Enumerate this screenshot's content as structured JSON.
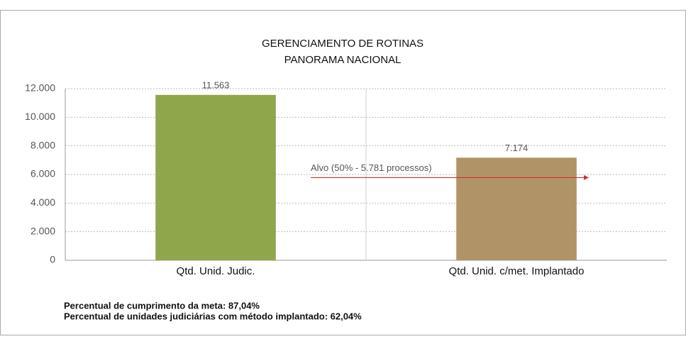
{
  "chart_data": {
    "type": "bar",
    "title": "GERENCIAMENTO DE ROTINAS",
    "subtitle": "PANORAMA NACIONAL",
    "categories": [
      "Qtd. Unid. Judic.",
      "Qtd. Unid. c/met. Implantado"
    ],
    "values": [
      11563,
      7174
    ],
    "value_labels": [
      "11.563",
      "7.174"
    ],
    "colors": [
      "#8fa64a",
      "#b09468"
    ],
    "ylim": [
      0,
      12000
    ],
    "yticks": [
      0,
      {
        "value": 2000,
        "label": "2.000"
      },
      {
        "value": 4000,
        "label": "4.000"
      },
      {
        "value": 6000,
        "label": "6.000"
      },
      {
        "value": 8000,
        "label": "8.000"
      },
      {
        "value": 10000,
        "label": "10.000"
      },
      {
        "value": 12000,
        "label": "12.000"
      }
    ],
    "grid": true,
    "target": {
      "label": "Alvo (50% - 5.781 processos)",
      "value": 5781,
      "color": "#d03030"
    },
    "notes": [
      "Percentual de cumprimento da meta: 87,04%",
      "Percentual de unidades judiciárias com método implantado: 62,04%"
    ]
  }
}
